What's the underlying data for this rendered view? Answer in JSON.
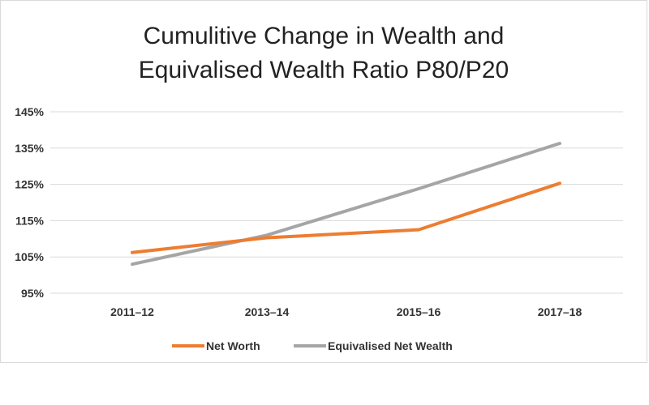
{
  "chart_data": {
    "type": "line",
    "title_line1": "Cumulitive Change in Wealth and",
    "title_line2": "Equivalised Wealth Ratio P80/P20",
    "categories": [
      "2011–12",
      "2013–14",
      "2015–16",
      "2017–18"
    ],
    "yticks": [
      "95%",
      "105%",
      "115%",
      "125%",
      "135%",
      "145%"
    ],
    "ytick_values": [
      95,
      105,
      115,
      125,
      135,
      145
    ],
    "ylim": [
      95,
      145
    ],
    "grid": true,
    "legend_position": "bottom",
    "series": [
      {
        "name": "Net Worth",
        "color": "#ED7D31",
        "values": [
          106.2,
          110.3,
          112.5,
          125.3
        ]
      },
      {
        "name": "Equivalised Net Wealth",
        "color": "#A5A5A5",
        "values": [
          103.0,
          111.0,
          123.8,
          136.3
        ]
      }
    ]
  }
}
